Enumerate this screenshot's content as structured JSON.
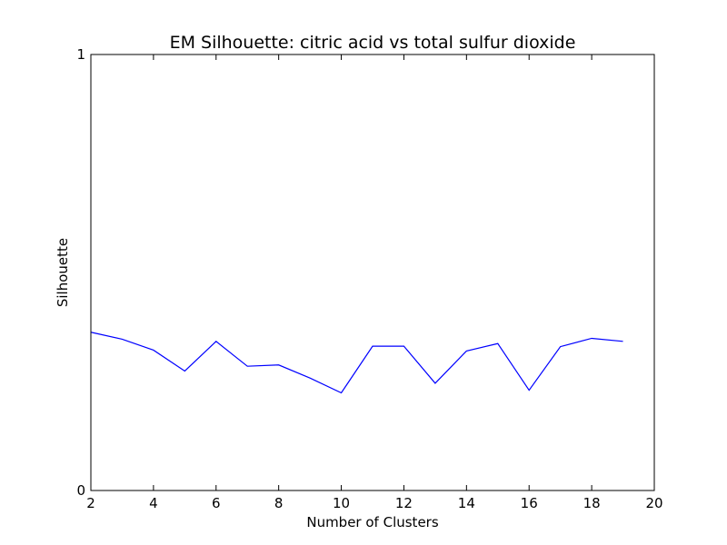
{
  "chart_data": {
    "type": "line",
    "title": "EM Silhouette: citric acid vs total sulfur dioxide",
    "xlabel": "Number of Clusters",
    "ylabel": "Silhouette",
    "xlim": [
      2,
      20
    ],
    "ylim": [
      0,
      1
    ],
    "xticks": [
      2,
      4,
      6,
      8,
      10,
      12,
      14,
      16,
      18,
      20
    ],
    "yticks": [
      0,
      1
    ],
    "grid": false,
    "legend": "none",
    "series": [
      {
        "color": "#0000ff",
        "x": [
          2,
          3,
          4,
          5,
          6,
          7,
          8,
          9,
          10,
          11,
          12,
          13,
          14,
          15,
          16,
          17,
          18,
          19
        ],
        "y": [
          0.363,
          0.347,
          0.322,
          0.274,
          0.342,
          0.285,
          0.288,
          0.258,
          0.224,
          0.331,
          0.331,
          0.246,
          0.32,
          0.337,
          0.23,
          0.33,
          0.349,
          0.342
        ]
      }
    ]
  }
}
